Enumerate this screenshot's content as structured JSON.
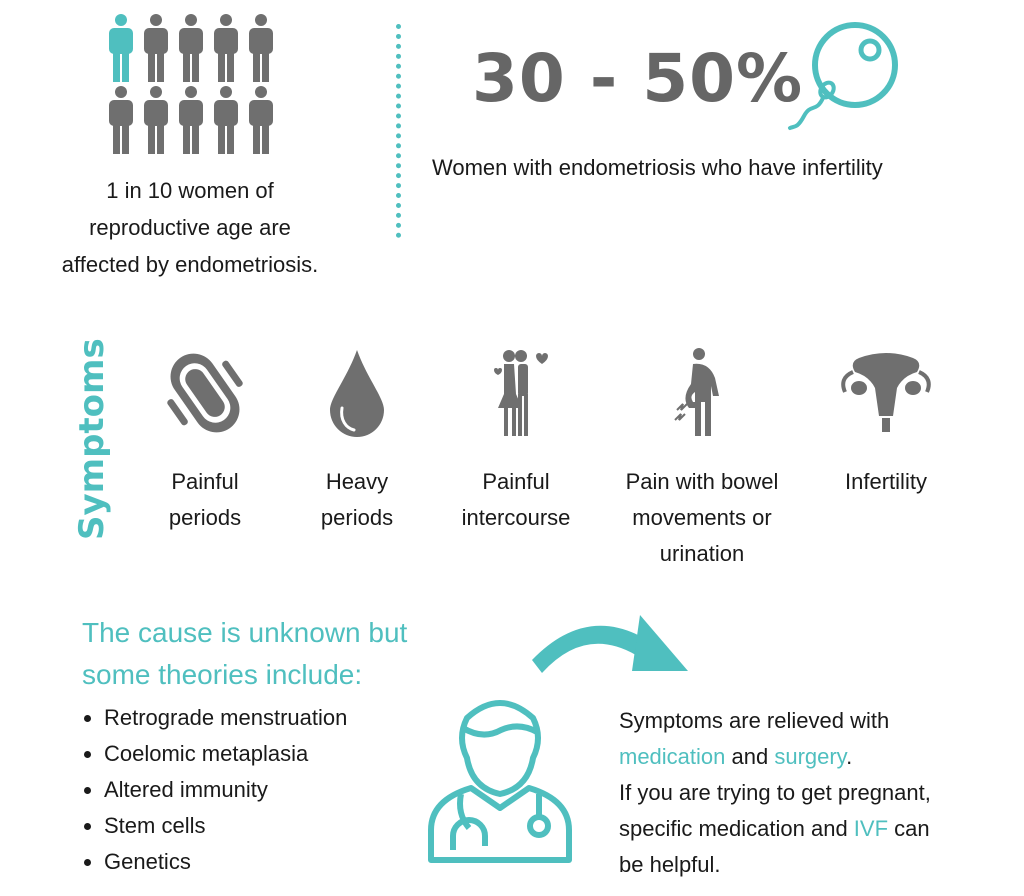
{
  "colors": {
    "accent": "#4fbfbf",
    "icon_gray": "#6f6f6f",
    "text": "#1a1a1a"
  },
  "prevalence": {
    "highlighted_count": 1,
    "total_count": 10,
    "caption": [
      "1 in 10 women of",
      "reproductive age are",
      "affected by endometriosis."
    ]
  },
  "infertility": {
    "stat": "30 - 50%",
    "description": "Women with endometriosis who have infertility",
    "icon": "egg-sperm-icon"
  },
  "symptoms": {
    "title": "Symptoms",
    "items": [
      {
        "icon": "sanitary-pad-icon",
        "label": [
          "Painful",
          "periods"
        ]
      },
      {
        "icon": "blood-drop-icon",
        "label": [
          "Heavy",
          "periods"
        ]
      },
      {
        "icon": "couple-icon",
        "label": [
          "Painful",
          "intercourse"
        ]
      },
      {
        "icon": "abdominal-pain-icon",
        "label": [
          "Pain with bowel",
          "movements or",
          "urination"
        ]
      },
      {
        "icon": "uterus-icon",
        "label": [
          "Infertility"
        ]
      }
    ]
  },
  "causes": {
    "title": [
      "The cause is unknown but",
      "some theories include:"
    ],
    "theories": [
      "Retrograde menstruation",
      "Coelomic metaplasia",
      "Altered immunity",
      "Stem cells",
      "Genetics"
    ]
  },
  "treatment": {
    "line1": "Symptoms are relieved with",
    "medication": "medication",
    "and": " and ",
    "surgery": "surgery",
    "period": ".",
    "line3": "If you are trying to get pregnant,",
    "line4_pre": "specific medication and ",
    "ivf": "IVF",
    "line4_post": " can",
    "line5": "be helpful."
  }
}
